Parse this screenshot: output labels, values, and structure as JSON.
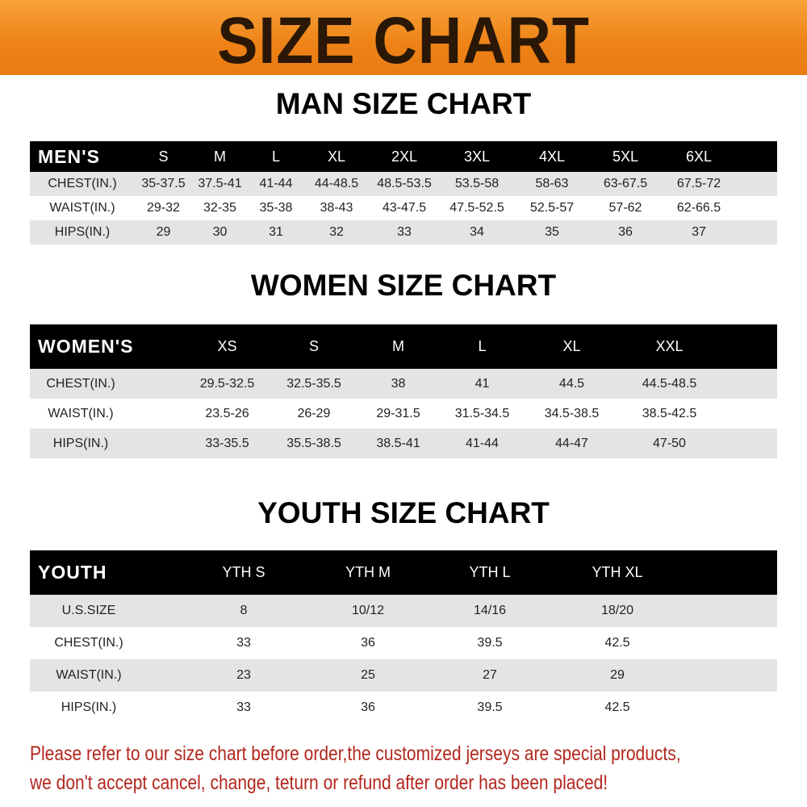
{
  "banner": {
    "title": "SIZE CHART",
    "color": "#ee8216"
  },
  "men": {
    "title": "MAN SIZE CHART",
    "header_label": "MEN'S",
    "sizes": [
      "S",
      "M",
      "L",
      "XL",
      "2XL",
      "3XL",
      "4XL",
      "5XL",
      "6XL"
    ],
    "rows": [
      {
        "label": "CHEST(IN.)",
        "values": [
          "35-37.5",
          "37.5-41",
          "41-44",
          "44-48.5",
          "48.5-53.5",
          "53.5-58",
          "58-63",
          "63-67.5",
          "67.5-72"
        ]
      },
      {
        "label": "WAIST(IN.)",
        "values": [
          "29-32",
          "32-35",
          "35-38",
          "38-43",
          "43-47.5",
          "47.5-52.5",
          "52.5-57",
          "57-62",
          "62-66.5"
        ]
      },
      {
        "label": "HIPS(IN.)",
        "values": [
          "29",
          "30",
          "31",
          "32",
          "33",
          "34",
          "35",
          "36",
          "37"
        ]
      }
    ]
  },
  "women": {
    "title": "WOMEN SIZE CHART",
    "header_label": "WOMEN'S",
    "sizes": [
      "XS",
      "S",
      "M",
      "L",
      "XL",
      "XXL"
    ],
    "rows": [
      {
        "label": "CHEST(IN.)",
        "values": [
          "29.5-32.5",
          "32.5-35.5",
          "38",
          "41",
          "44.5",
          "44.5-48.5"
        ]
      },
      {
        "label": "WAIST(IN.)",
        "values": [
          "23.5-26",
          "26-29",
          "29-31.5",
          "31.5-34.5",
          "34.5-38.5",
          "38.5-42.5"
        ]
      },
      {
        "label": "HIPS(IN.)",
        "values": [
          "33-35.5",
          "35.5-38.5",
          "38.5-41",
          "41-44",
          "44-47",
          "47-50"
        ]
      }
    ]
  },
  "youth": {
    "title": "YOUTH SIZE CHART",
    "header_label": "YOUTH",
    "sizes": [
      "YTH S",
      "YTH M",
      "YTH L",
      "YTH XL"
    ],
    "rows": [
      {
        "label": "U.S.SIZE",
        "values": [
          "8",
          "10/12",
          "14/16",
          "18/20"
        ]
      },
      {
        "label": "CHEST(IN.)",
        "values": [
          "33",
          "36",
          "39.5",
          "42.5"
        ]
      },
      {
        "label": "WAIST(IN.)",
        "values": [
          "23",
          "25",
          "27",
          "29"
        ]
      },
      {
        "label": "HIPS(IN.)",
        "values": [
          "33",
          "36",
          "39.5",
          "42.5"
        ]
      }
    ]
  },
  "footer": {
    "line1": "Please refer to our size chart before order,the customized jerseys are special products,",
    "line2": "we don't accept cancel, change, teturn or refund after order has been placed!",
    "color": "#b3261e"
  }
}
